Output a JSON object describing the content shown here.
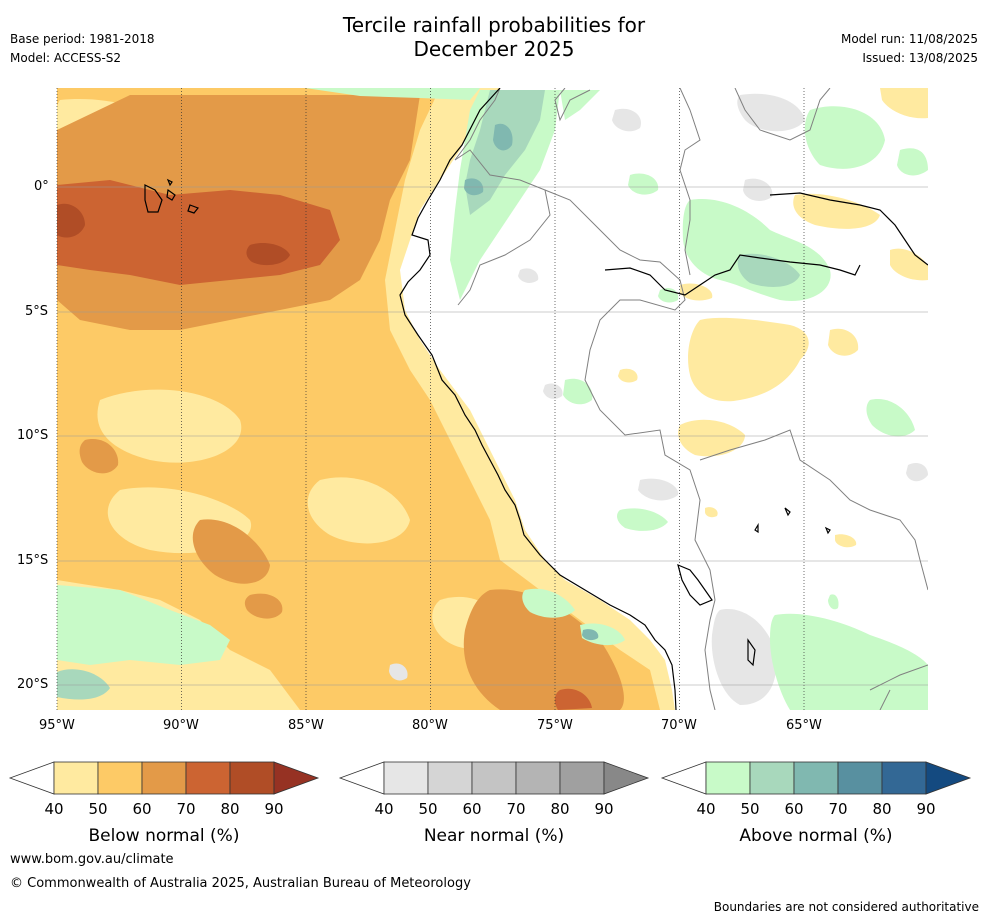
{
  "header": {
    "title_line1": "Tercile rainfall probabilities for",
    "title_line2": "December 2025",
    "base_period": "Base period: 1981-2018",
    "model": "Model: ACCESS-S2",
    "model_run": "Model run: 11/08/2025",
    "issued": "Issued: 13/08/2025"
  },
  "map": {
    "lon_labels": [
      "95°W",
      "90°W",
      "85°W",
      "80°W",
      "75°W",
      "70°W",
      "65°W"
    ],
    "lat_labels": [
      "0°",
      "5°S",
      "10°S",
      "15°S",
      "20°S"
    ],
    "extent": {
      "lon_min": -95,
      "lon_max": -60,
      "lat_min": -21,
      "lat_max": 4
    }
  },
  "colorbars": [
    {
      "title": "Below normal (%)",
      "ticks": [
        "40",
        "50",
        "60",
        "70",
        "80",
        "90"
      ],
      "colors": [
        "#ffffff",
        "#ffeaa0",
        "#fdca66",
        "#e39a48",
        "#cc6432",
        "#b04d26",
        "#963223"
      ]
    },
    {
      "title": "Near normal (%)",
      "ticks": [
        "40",
        "50",
        "60",
        "70",
        "80",
        "90"
      ],
      "colors": [
        "#ffffff",
        "#e6e6e6",
        "#d5d5d5",
        "#c4c4c4",
        "#b4b4b4",
        "#a0a0a0",
        "#888888"
      ]
    },
    {
      "title": "Above normal (%)",
      "ticks": [
        "40",
        "50",
        "60",
        "70",
        "80",
        "90"
      ],
      "colors": [
        "#ffffff",
        "#c8fac8",
        "#a8d8bc",
        "#80b8b0",
        "#5890a0",
        "#336895",
        "#144a80"
      ]
    }
  ],
  "footer": {
    "website": "www.bom.gov.au/climate",
    "copyright": "© Commonwealth of Australia 2025, Australian Bureau of Meteorology",
    "disclaimer": "Boundaries are not considered authoritative"
  }
}
